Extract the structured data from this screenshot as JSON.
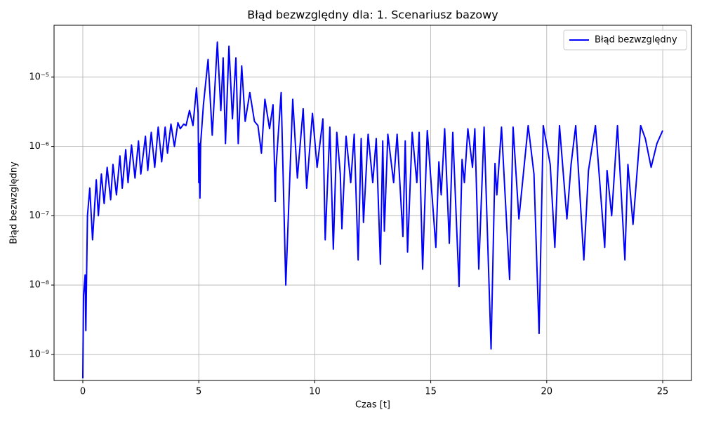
{
  "chart_data": {
    "type": "line",
    "title": "Błąd bezwzględny dla: 1. Scenariusz bazowy",
    "x_label": "Czas [t]",
    "y_label": "Błąd bezwzględny",
    "yscale": "log",
    "grid": true,
    "legend": "upper right",
    "xlim": [
      -1.24,
      26.24
    ],
    "xticks": [
      0,
      5,
      10,
      15,
      20,
      25
    ],
    "ylim": [
      4.2e-10,
      5.6e-05
    ],
    "yticks": [
      {
        "value": 1e-09,
        "label": "10⁻⁹"
      },
      {
        "value": 1e-08,
        "label": "10⁻⁸"
      },
      {
        "value": 1e-07,
        "label": "10⁻⁷"
      },
      {
        "value": 1e-06,
        "label": "10⁻⁶"
      },
      {
        "value": 1e-05,
        "label": "10⁻⁵"
      }
    ],
    "x": [
      0,
      0.03,
      0.1,
      0.13,
      0.2,
      0.3,
      0.42,
      0.58,
      0.67,
      0.8,
      0.92,
      1.05,
      1.2,
      1.3,
      1.45,
      1.6,
      1.7,
      1.85,
      1.95,
      2.1,
      2.25,
      2.4,
      2.5,
      2.7,
      2.8,
      2.95,
      3.1,
      3.25,
      3.4,
      3.55,
      3.65,
      3.8,
      3.95,
      4.1,
      4.2,
      4.35,
      4.45,
      4.6,
      4.75,
      4.9,
      4.97,
      5.0,
      5.02,
      5.05,
      5.08,
      5.2,
      5.4,
      5.58,
      5.8,
      5.95,
      6.05,
      6.15,
      6.3,
      6.45,
      6.6,
      6.7,
      6.85,
      7.0,
      7.2,
      7.4,
      7.55,
      7.7,
      7.85,
      8.05,
      8.2,
      8.3,
      8.32,
      8.55,
      8.75,
      9.05,
      9.25,
      9.5,
      9.65,
      9.9,
      10.1,
      10.35,
      10.45,
      10.65,
      10.8,
      10.95,
      11.1,
      11.17,
      11.35,
      11.55,
      11.7,
      11.87,
      12.0,
      12.1,
      12.3,
      12.5,
      12.65,
      12.83,
      12.93,
      13.0,
      13.15,
      13.4,
      13.55,
      13.8,
      13.9,
      14.0,
      14.2,
      14.4,
      14.5,
      14.65,
      14.85,
      15.22,
      15.35,
      15.45,
      15.6,
      15.8,
      15.95,
      16.22,
      16.35,
      16.45,
      16.6,
      16.8,
      16.9,
      17.07,
      17.3,
      17.6,
      17.77,
      17.85,
      18.05,
      18.4,
      18.55,
      18.8,
      19.2,
      19.45,
      19.67,
      19.85,
      20.15,
      20.35,
      20.55,
      20.87,
      21.05,
      21.25,
      21.6,
      21.8,
      22.1,
      22.5,
      22.6,
      22.8,
      23.05,
      23.37,
      23.5,
      23.72,
      24.05,
      24.25,
      24.5,
      24.75,
      25.0
    ],
    "series": [
      {
        "name": "Błąd bezwzględny",
        "color": "#0000ff",
        "values": [
          4.5e-10,
          7e-09,
          1.4e-08,
          2.2e-09,
          1e-07,
          2.5e-07,
          4.5e-08,
          3.3e-07,
          1e-07,
          4e-07,
          1.5e-07,
          5e-07,
          1.7e-07,
          5.5e-07,
          2e-07,
          7.3e-07,
          2.5e-07,
          9e-07,
          3e-07,
          1.05e-06,
          3.5e-07,
          1.2e-06,
          4e-07,
          1.4e-06,
          4.5e-07,
          1.6e-06,
          5e-07,
          1.9e-06,
          6e-07,
          1.9e-06,
          8e-07,
          2.1e-06,
          1e-06,
          2.2e-06,
          1.8e-06,
          2.1e-06,
          2e-06,
          3.3e-06,
          2e-06,
          7e-06,
          3e-06,
          3e-07,
          1.1e-06,
          1.8e-07,
          1.1e-06,
          4e-06,
          1.8e-05,
          1.45e-06,
          3.2e-05,
          3.3e-06,
          1.9e-05,
          1.1e-06,
          2.8e-05,
          2.5e-06,
          1.9e-05,
          1.1e-06,
          1.45e-05,
          2.3e-06,
          6e-06,
          2.3e-06,
          2e-06,
          8e-07,
          4.8e-06,
          1.8e-06,
          4e-06,
          1.6e-07,
          4.5e-07,
          6e-06,
          1e-08,
          4.8e-06,
          3.5e-07,
          3.5e-06,
          2.5e-07,
          3e-06,
          5e-07,
          2.5e-06,
          4.5e-08,
          1.9e-06,
          3.3e-08,
          1.6e-06,
          4e-07,
          6.5e-08,
          1.4e-06,
          3e-07,
          1.5e-06,
          2.3e-08,
          1.3e-06,
          8e-08,
          1.5e-06,
          3e-07,
          1.3e-06,
          2e-08,
          1.2e-06,
          6e-08,
          1.5e-06,
          3e-07,
          1.5e-06,
          5e-08,
          1.2e-06,
          3e-08,
          1.6e-06,
          3e-07,
          1.6e-06,
          1.7e-08,
          1.7e-06,
          3.5e-08,
          6e-07,
          2e-07,
          1.8e-06,
          4e-08,
          1.6e-06,
          9.5e-09,
          6.5e-07,
          3e-07,
          1.8e-06,
          5e-07,
          1.8e-06,
          1.7e-08,
          1.9e-06,
          1.2e-09,
          5.7e-07,
          2e-07,
          1.9e-06,
          1.2e-08,
          1.9e-06,
          9e-08,
          2e-06,
          4e-07,
          2e-09,
          2e-06,
          5.5e-07,
          3.5e-08,
          2e-06,
          9e-08,
          5.5e-07,
          2e-06,
          2.3e-08,
          4.5e-07,
          2e-06,
          3.5e-08,
          4.5e-07,
          1e-07,
          2e-06,
          2.3e-08,
          5.5e-07,
          7.5e-08,
          2e-06,
          1.3e-06,
          5e-07,
          1.1e-06,
          1.7e-06
        ]
      }
    ]
  }
}
